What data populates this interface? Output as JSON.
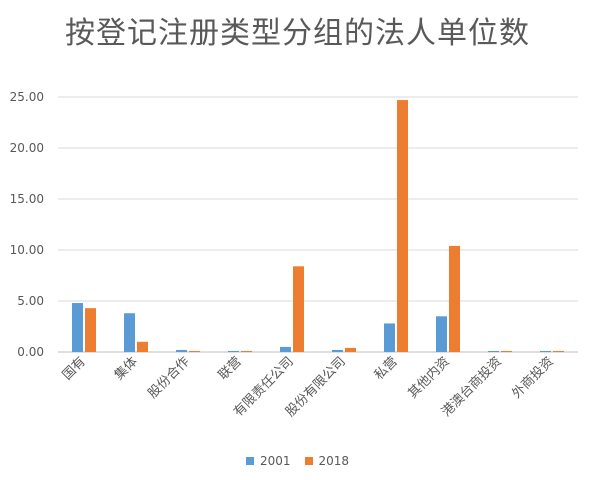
{
  "chart_data": {
    "type": "bar",
    "title": "按登记注册类型分组的法人单位数",
    "categories": [
      "国有",
      "集体",
      "股份合作",
      "联营",
      "有限责任公司",
      "股份有限公司",
      "私营",
      "其他内资",
      "港澳台商投资",
      "外商投资"
    ],
    "series": [
      {
        "name": "2001",
        "values": [
          4.8,
          3.8,
          0.2,
          0.1,
          0.5,
          0.2,
          2.8,
          3.5,
          0.1,
          0.1
        ],
        "color": "#5B9BD5"
      },
      {
        "name": "2018",
        "values": [
          4.3,
          1.0,
          0.1,
          0.1,
          8.4,
          0.4,
          24.7,
          10.4,
          0.1,
          0.1
        ],
        "color": "#ED7D31"
      }
    ],
    "yticks": [
      "0.00",
      "5.00",
      "10.00",
      "15.00",
      "20.00",
      "25.00"
    ],
    "ylim": [
      0,
      25
    ],
    "xlabel": "",
    "ylabel": "",
    "grid": true,
    "legend_position": "bottom"
  }
}
